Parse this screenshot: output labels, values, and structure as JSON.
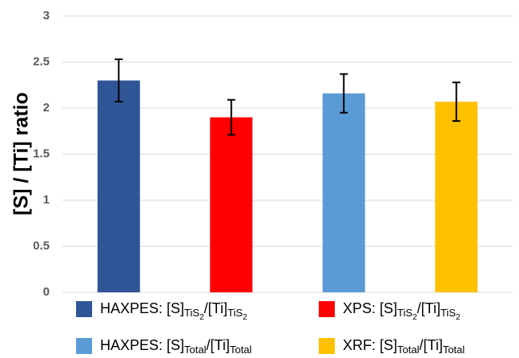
{
  "chart_data": {
    "type": "bar",
    "ylabel": "[S] / [Ti] ratio",
    "categories": [
      null
    ],
    "series": [
      {
        "name": [
          {
            "text": "HAXPES: [S]"
          },
          {
            "sub": "TiS"
          },
          {
            "subsub": "2"
          },
          {
            "text": "/[Ti]"
          },
          {
            "sub": "TiS"
          },
          {
            "subsub": "2"
          }
        ],
        "color": "#2f5597",
        "values": [
          2.3
        ],
        "errors": [
          0.23
        ]
      },
      {
        "name": [
          {
            "text": "XPS: [S]"
          },
          {
            "sub": "TiS"
          },
          {
            "subsub": "2"
          },
          {
            "text": "/[Ti]"
          },
          {
            "sub": "TiS"
          },
          {
            "subsub": "2"
          }
        ],
        "color": "#ff0000",
        "values": [
          1.9
        ],
        "errors": [
          0.19
        ]
      },
      {
        "name": [
          {
            "text": "HAXPES: [S]"
          },
          {
            "sub": "Total"
          },
          {
            "text": "/[Ti]"
          },
          {
            "sub": "Total"
          }
        ],
        "color": "#5b9bd5",
        "values": [
          2.16
        ],
        "errors": [
          0.21
        ]
      },
      {
        "name": [
          {
            "text": "XRF: [S]"
          },
          {
            "sub": "Total"
          },
          {
            "text": "/[Ti]"
          },
          {
            "sub": "Total"
          }
        ],
        "color": "#ffc000",
        "values": [
          2.07
        ],
        "errors": [
          0.21
        ]
      }
    ],
    "ylim": [
      0,
      3
    ],
    "yticks": [
      0,
      0.5,
      1,
      1.5,
      2,
      2.5,
      3
    ],
    "grid": true
  }
}
